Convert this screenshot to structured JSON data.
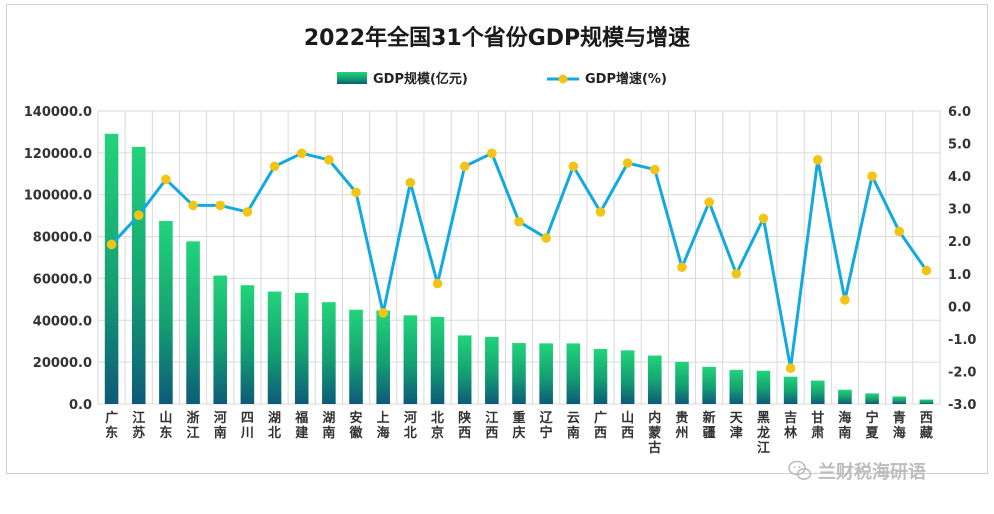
{
  "chart_data": {
    "type": "bar+line",
    "title": "2022年全国31个省份GDP规模与增速",
    "categories": [
      "广东",
      "江苏",
      "山东",
      "浙江",
      "河南",
      "四川",
      "湖北",
      "福建",
      "湖南",
      "安徽",
      "上海",
      "河北",
      "北京",
      "陕西",
      "江西",
      "重庆",
      "辽宁",
      "云南",
      "广西",
      "山西",
      "内蒙古",
      "贵州",
      "新疆",
      "天津",
      "黑龙江",
      "吉林",
      "甘肃",
      "海南",
      "宁夏",
      "青海",
      "西藏"
    ],
    "series": [
      {
        "name": "GDP规模(亿元)",
        "type": "bar",
        "axis": "left",
        "values": [
          129119,
          122876,
          87435,
          77715,
          61345,
          56750,
          53735,
          53110,
          48670,
          45045,
          44653,
          42370,
          41611,
          32773,
          32075,
          29129,
          28975,
          28954,
          26301,
          25643,
          23159,
          20165,
          17741,
          16311,
          15901,
          13070,
          11202,
          6818,
          5070,
          3610,
          2133
        ]
      },
      {
        "name": "GDP增速(%)",
        "type": "line",
        "axis": "right",
        "values": [
          1.9,
          2.8,
          3.9,
          3.1,
          3.1,
          2.9,
          4.3,
          4.7,
          4.5,
          3.5,
          -0.2,
          3.8,
          0.7,
          4.3,
          4.7,
          2.6,
          2.1,
          4.3,
          2.9,
          4.4,
          4.2,
          1.2,
          3.2,
          1.0,
          2.7,
          -1.9,
          4.5,
          0.2,
          4.0,
          2.3,
          1.1
        ]
      }
    ],
    "y_left": {
      "range": [
        0,
        140000
      ],
      "ticks": [
        "0.0",
        "20000.0",
        "40000.0",
        "60000.0",
        "80000.0",
        "100000.0",
        "120000.0",
        "140000.0"
      ]
    },
    "y_right": {
      "range": [
        -3.0,
        6.0
      ],
      "ticks": [
        "-3.0",
        "-2.0",
        "-1.0",
        "0.0",
        "1.0",
        "2.0",
        "3.0",
        "4.0",
        "5.0",
        "6.0"
      ]
    },
    "legend_position": "top-center",
    "grid": true,
    "colors": {
      "bar_top": "#22d47a",
      "bar_bottom": "#0d5a78",
      "line": "#12a9e0",
      "marker": "#f2c414",
      "grid": "#d9d9d9"
    }
  },
  "watermark": {
    "icon": "wechat-icon",
    "text": "兰财税海研语"
  }
}
